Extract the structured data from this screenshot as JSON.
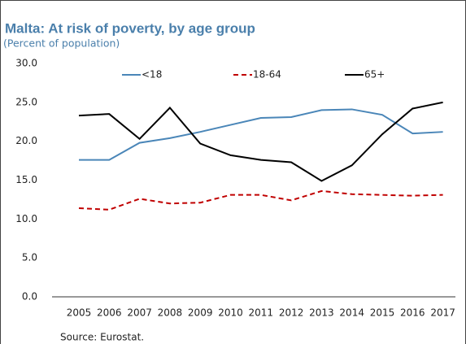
{
  "chart_data": {
    "type": "line",
    "title": "Malta: At risk of poverty, by age group",
    "subtitle": "(Percent of population)",
    "source": "Source: Eurostat.",
    "categories": [
      "2005",
      "2006",
      "2007",
      "2008",
      "2009",
      "2010",
      "2011",
      "2012",
      "2013",
      "2014",
      "2015",
      "2016",
      "2017"
    ],
    "series": [
      {
        "name": "<18",
        "color": "#4a86b8",
        "dash": false,
        "values": [
          17.6,
          17.6,
          19.8,
          20.4,
          21.2,
          22.1,
          23.0,
          23.1,
          24.0,
          24.1,
          23.4,
          21.0,
          21.2
        ]
      },
      {
        "name": "18-64",
        "color": "#c00000",
        "dash": true,
        "values": [
          11.4,
          11.2,
          12.6,
          12.0,
          12.1,
          13.1,
          13.1,
          12.4,
          13.6,
          13.2,
          13.1,
          13.0,
          13.1
        ]
      },
      {
        "name": "65+",
        "color": "#000000",
        "dash": false,
        "values": [
          23.3,
          23.5,
          20.3,
          24.3,
          19.7,
          18.2,
          17.6,
          17.3,
          14.9,
          16.9,
          20.9,
          24.2,
          25.0
        ]
      }
    ],
    "ylim": [
      0,
      30
    ],
    "yticks": [
      {
        "value": 0,
        "label": "0.0"
      },
      {
        "value": 5,
        "label": "5.0"
      },
      {
        "value": 10,
        "label": "10.0"
      },
      {
        "value": 15,
        "label": "15.0"
      },
      {
        "value": 20,
        "label": "20.0"
      },
      {
        "value": 25,
        "label": "25.0"
      },
      {
        "value": 30,
        "label": "30.0"
      }
    ],
    "grid": false
  }
}
